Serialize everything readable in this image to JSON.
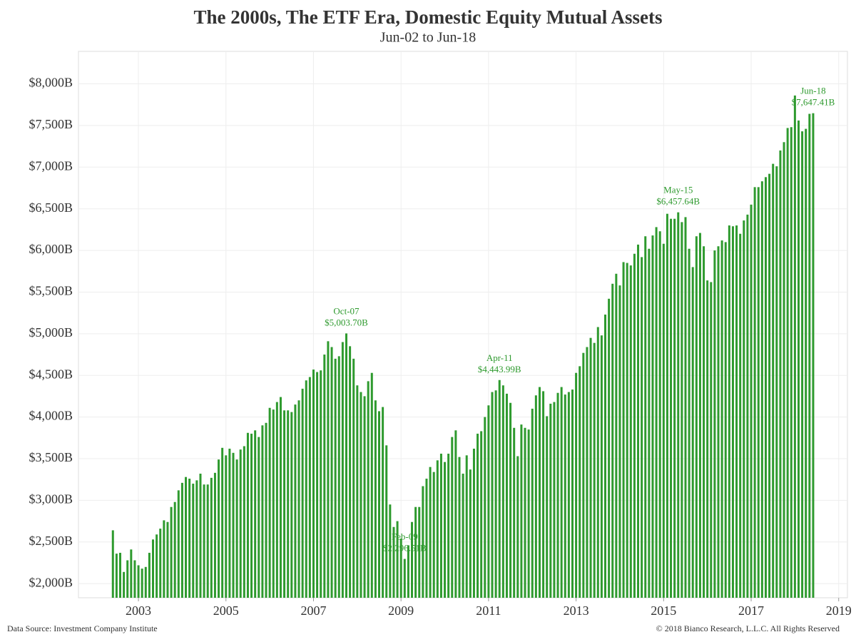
{
  "chart_data": {
    "type": "bar",
    "title": "The 2000s, The ETF Era, Domestic Equity Mutual Assets",
    "subtitle": "Jun-02 to Jun-18",
    "source": "Data Source: Investment Company Institute",
    "copyright": "© 2018  Bianco Research, L.L.C. All Rights Reserved",
    "color": "#2e9a2e",
    "grid": true,
    "xlim": [
      2001.63,
      2019.2
    ],
    "xticks": [
      2003,
      2005,
      2007,
      2009,
      2011,
      2013,
      2015,
      2017,
      2019
    ],
    "ylim": [
      1830,
      8390
    ],
    "yticks": [
      {
        "value": 2000,
        "label": "$2,000B"
      },
      {
        "value": 2500,
        "label": "$2,500B"
      },
      {
        "value": 3000,
        "label": "$3,000B"
      },
      {
        "value": 3500,
        "label": "$3,500B"
      },
      {
        "value": 4000,
        "label": "$4,000B"
      },
      {
        "value": 4500,
        "label": "$4,500B"
      },
      {
        "value": 5000,
        "label": "$5,000B"
      },
      {
        "value": 5500,
        "label": "$5,500B"
      },
      {
        "value": 6000,
        "label": "$6,000B"
      },
      {
        "value": 6500,
        "label": "$6,500B"
      },
      {
        "value": 7000,
        "label": "$7,000B"
      },
      {
        "value": 7500,
        "label": "$7,500B"
      },
      {
        "value": 8000,
        "label": "$8,000B"
      }
    ],
    "x": [
      2002.4167,
      2002.5,
      2002.5833,
      2002.6667,
      2002.75,
      2002.8333,
      2002.9167,
      2003,
      2003.0833,
      2003.1667,
      2003.25,
      2003.3333,
      2003.4167,
      2003.5,
      2003.5833,
      2003.6667,
      2003.75,
      2003.8333,
      2003.9167,
      2004,
      2004.0833,
      2004.1667,
      2004.25,
      2004.3333,
      2004.4167,
      2004.5,
      2004.5833,
      2004.6667,
      2004.75,
      2004.8333,
      2004.9167,
      2005,
      2005.0833,
      2005.1667,
      2005.25,
      2005.3333,
      2005.4167,
      2005.5,
      2005.5833,
      2005.6667,
      2005.75,
      2005.8333,
      2005.9167,
      2006,
      2006.0833,
      2006.1667,
      2006.25,
      2006.3333,
      2006.4167,
      2006.5,
      2006.5833,
      2006.6667,
      2006.75,
      2006.8333,
      2006.9167,
      2007,
      2007.0833,
      2007.1667,
      2007.25,
      2007.3333,
      2007.4167,
      2007.5,
      2007.5833,
      2007.6667,
      2007.75,
      2007.8333,
      2007.9167,
      2008,
      2008.0833,
      2008.1667,
      2008.25,
      2008.3333,
      2008.4167,
      2008.5,
      2008.5833,
      2008.6667,
      2008.75,
      2008.8333,
      2008.9167,
      2009,
      2009.0833,
      2009.1667,
      2009.25,
      2009.3333,
      2009.4167,
      2009.5,
      2009.5833,
      2009.6667,
      2009.75,
      2009.8333,
      2009.9167,
      2010,
      2010.0833,
      2010.1667,
      2010.25,
      2010.3333,
      2010.4167,
      2010.5,
      2010.5833,
      2010.6667,
      2010.75,
      2010.8333,
      2010.9167,
      2011,
      2011.0833,
      2011.1667,
      2011.25,
      2011.3333,
      2011.4167,
      2011.5,
      2011.5833,
      2011.6667,
      2011.75,
      2011.8333,
      2011.9167,
      2012,
      2012.0833,
      2012.1667,
      2012.25,
      2012.3333,
      2012.4167,
      2012.5,
      2012.5833,
      2012.6667,
      2012.75,
      2012.8333,
      2012.9167,
      2013,
      2013.0833,
      2013.1667,
      2013.25,
      2013.3333,
      2013.4167,
      2013.5,
      2013.5833,
      2013.6667,
      2013.75,
      2013.8333,
      2013.9167,
      2014,
      2014.0833,
      2014.1667,
      2014.25,
      2014.3333,
      2014.4167,
      2014.5,
      2014.5833,
      2014.6667,
      2014.75,
      2014.8333,
      2014.9167,
      2015,
      2015.0833,
      2015.1667,
      2015.25,
      2015.3333,
      2015.4167,
      2015.5,
      2015.5833,
      2015.6667,
      2015.75,
      2015.8333,
      2015.9167,
      2016,
      2016.0833,
      2016.1667,
      2016.25,
      2016.3333,
      2016.4167,
      2016.5,
      2016.5833,
      2016.6667,
      2016.75,
      2016.8333,
      2016.9167,
      2017,
      2017.0833,
      2017.1667,
      2017.25,
      2017.3333,
      2017.4167,
      2017.5,
      2017.5833,
      2017.6667,
      2017.75,
      2017.8333,
      2017.9167,
      2018,
      2018.0833,
      2018.1667,
      2018.25,
      2018.3333,
      2018.4167
    ],
    "values": [
      2640,
      2360,
      2370,
      2140,
      2280,
      2410,
      2280,
      2220,
      2180,
      2200,
      2370,
      2530,
      2590,
      2660,
      2760,
      2740,
      2920,
      2980,
      3120,
      3210,
      3280,
      3260,
      3200,
      3240,
      3320,
      3190,
      3190,
      3270,
      3330,
      3490,
      3630,
      3540,
      3620,
      3570,
      3490,
      3610,
      3650,
      3810,
      3800,
      3840,
      3760,
      3900,
      3930,
      4110,
      4090,
      4180,
      4240,
      4080,
      4080,
      4060,
      4150,
      4200,
      4340,
      4440,
      4480,
      4570,
      4540,
      4560,
      4750,
      4910,
      4840,
      4700,
      4730,
      4900,
      5003.7,
      4850,
      4700,
      4380,
      4300,
      4250,
      4430,
      4530,
      4200,
      4070,
      4120,
      3660,
      2950,
      2680,
      2750,
      2540,
      2296.51,
      2460,
      2740,
      2920,
      2920,
      3170,
      3260,
      3400,
      3340,
      3480,
      3560,
      3460,
      3560,
      3760,
      3840,
      3520,
      3320,
      3540,
      3370,
      3620,
      3800,
      3830,
      4000,
      4140,
      4300,
      4320,
      4443.99,
      4380,
      4280,
      4170,
      3870,
      3530,
      3910,
      3870,
      3850,
      4100,
      4260,
      4360,
      4310,
      4010,
      4160,
      4180,
      4290,
      4360,
      4270,
      4300,
      4330,
      4530,
      4610,
      4770,
      4840,
      4950,
      4890,
      5080,
      4980,
      5230,
      5420,
      5600,
      5720,
      5580,
      5860,
      5850,
      5820,
      5960,
      6070,
      5920,
      6170,
      6020,
      6180,
      6280,
      6230,
      6080,
      6440,
      6380,
      6380,
      6457.64,
      6340,
      6400,
      6020,
      5800,
      6170,
      6210,
      6050,
      5640,
      5620,
      6000,
      6050,
      6120,
      6100,
      6300,
      6290,
      6300,
      6200,
      6360,
      6430,
      6550,
      6760,
      6760,
      6830,
      6880,
      6920,
      7040,
      7010,
      7200,
      7300,
      7470,
      7480,
      7860,
      7560,
      7430,
      7460,
      7640,
      7647.41
    ],
    "annotations": [
      {
        "text": "Oct-07",
        "value_label": "$5,003.70B",
        "x": 2007.75
      },
      {
        "text": "Feb-09",
        "value_label": "$2,296.51B",
        "x": 2009.0833
      },
      {
        "text": "Apr-11",
        "value_label": "$4,443.99B",
        "x": 2011.25
      },
      {
        "text": "May-15",
        "value_label": "$6,457.64B",
        "x": 2015.3333
      },
      {
        "text": "Jun-18",
        "value_label": "$7,647.41B",
        "x": 2018.4167
      }
    ]
  }
}
